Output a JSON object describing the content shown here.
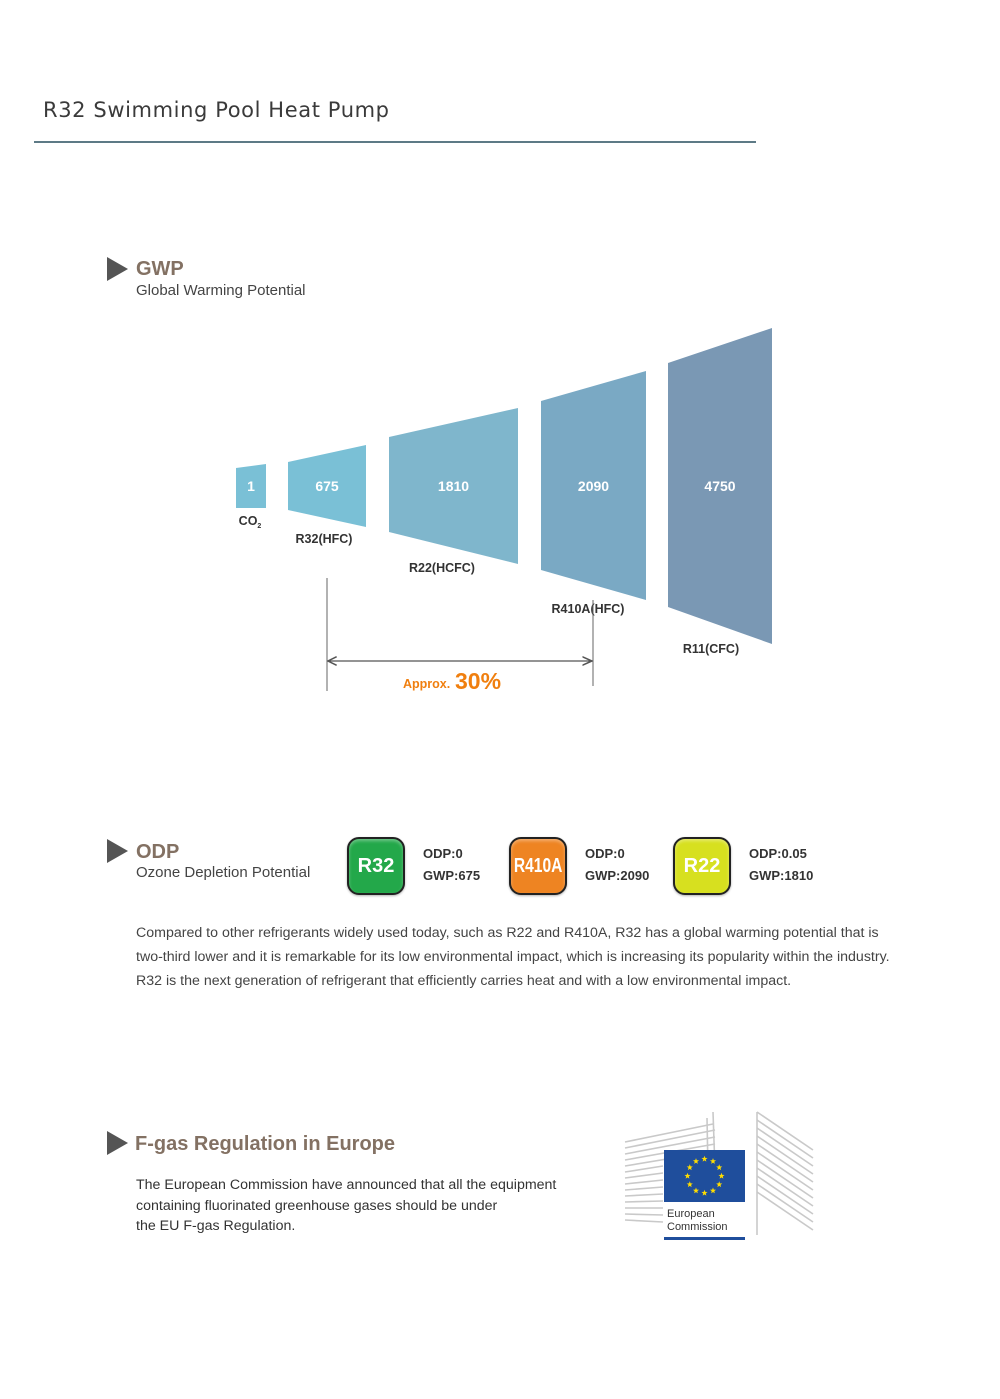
{
  "page": {
    "title": "R32 Swimming Pool Heat Pump"
  },
  "gwp": {
    "title": "GWP",
    "subtitle": "Global Warming Potential",
    "approx_prefix": "Approx.",
    "approx_value": "30%",
    "colors": {
      "light": "#7ac0d6",
      "dark": "#7a98b4",
      "approx": "#f07f0f"
    }
  },
  "chart_data": {
    "type": "bar",
    "categories": [
      "CO2",
      "R32(HFC)",
      "R22(HCFC)",
      "R410A(HFC)",
      "R11(CFC)"
    ],
    "values": [
      1,
      675,
      1810,
      2090,
      4750
    ],
    "value_labels": [
      "1",
      "675",
      "1810",
      "2090",
      "4750"
    ],
    "co2_label": {
      "main": "CO",
      "subscript": "2"
    }
  },
  "odp": {
    "title": "ODP",
    "subtitle": "Ozone Depletion Potential",
    "badges": [
      {
        "label": "R32",
        "odp": "ODP:0",
        "gwp": "GWP:675",
        "color": "#23a84a"
      },
      {
        "label": "R410A",
        "odp": "ODP:0",
        "gwp": "GWP:2090",
        "color": "#ee8422"
      },
      {
        "label": "R22",
        "odp": "ODP:0.05",
        "gwp": "GWP:1810",
        "color": "#d7e01f"
      }
    ],
    "paragraph": [
      "Compared to other refrigerants widely used today, such as R22 and R410A, R32 has a global warming potential that is",
      "two-third lower and it is remarkable for its low environmental impact, which is increasing its popularity within the industry.",
      "R32 is the next generation of refrigerant that efficiently carries heat and with a low environmental impact."
    ]
  },
  "fgas": {
    "title": "F-gas Regulation in Europe",
    "lines": [
      "The European Commission have announced that all the equipment",
      "containing fluorinated greenhouse gases should be under",
      "the EU F-gas Regulation."
    ],
    "logo": {
      "line1": "European",
      "line2": "Commission",
      "flag_color": "#1f4e9c",
      "star_color": "#ffdd00"
    }
  }
}
